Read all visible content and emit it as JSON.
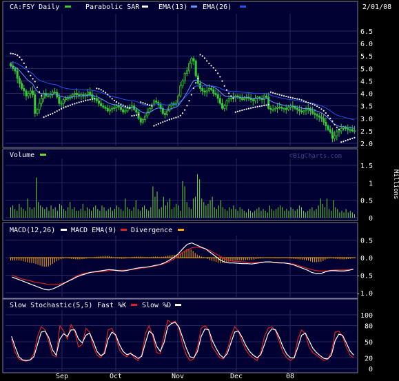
{
  "colors": {
    "background": "#000000",
    "panel_bg": "#000033",
    "panel_border": "#8080a0",
    "grid": "#2a2a60",
    "text": "#ffffff",
    "candle_up": "#33cc33",
    "candle_down": "#33cc33",
    "sar": "#ffffff",
    "ema13": "#6699ff",
    "ema26": "#2255ee",
    "volume": "#66dd33",
    "macd": "#ffffff",
    "macd_ema": "#dd2222",
    "divergence": "#ffaa00",
    "fastk": "#dd2222",
    "slowd": "#ffffff"
  },
  "header": {
    "symbol": "CA:FSY Daily",
    "date": "2/01/08",
    "watermark": "©BigCharts.com"
  },
  "x_axis": {
    "labels": [
      "Sep",
      "Oct",
      "Nov",
      "Dec",
      "08"
    ]
  },
  "chart_data": [
    {
      "type": "candlestick",
      "legend": [
        "Parabolic SAR",
        "EMA(13)",
        "EMA(26)"
      ],
      "ylim": [
        1.9,
        6.6
      ],
      "yticks": [
        "2.0",
        "2.5",
        "3.0",
        "3.5",
        "4.0",
        "4.5",
        "5.0",
        "5.5",
        "6.0",
        "6.5"
      ],
      "grid": true,
      "close": [
        5.1,
        5.0,
        4.9,
        4.6,
        4.4,
        4.2,
        4.1,
        3.9,
        4.0,
        4.1,
        3.95,
        3.2,
        3.35,
        3.6,
        3.8,
        4.0,
        3.9,
        3.9,
        3.95,
        4.05,
        4.05,
        3.85,
        3.6,
        3.6,
        3.75,
        3.8,
        3.8,
        3.9,
        3.95,
        4.0,
        3.95,
        3.9,
        3.95,
        3.9,
        3.95,
        4.05,
        3.95,
        3.8,
        3.8,
        3.7,
        3.6,
        3.5,
        3.45,
        3.4,
        3.3,
        3.35,
        3.4,
        3.45,
        3.5,
        3.45,
        3.35,
        3.25,
        3.3,
        3.4,
        3.45,
        3.5,
        3.35,
        3.25,
        3.0,
        2.85,
        2.95,
        3.1,
        3.25,
        3.4,
        3.55,
        3.7,
        3.65,
        3.55,
        3.4,
        3.2,
        3.15,
        3.3,
        3.5,
        3.6,
        3.55,
        3.6,
        3.9,
        4.3,
        4.5,
        4.8,
        4.9,
        5.2,
        5.4,
        5.3,
        4.7,
        4.4,
        4.2,
        4.1,
        4.05,
        4.1,
        4.2,
        4.15,
        4.0,
        3.95,
        3.8,
        3.6,
        3.4,
        3.5,
        3.7,
        3.8,
        3.8,
        3.85,
        3.9,
        3.85,
        3.8,
        3.75,
        3.8,
        3.85,
        3.8,
        3.75,
        3.7,
        3.8,
        3.85,
        3.8,
        3.75,
        3.9,
        3.85,
        3.4,
        3.35,
        3.35,
        3.4,
        3.45,
        3.45,
        3.4,
        3.4,
        3.35,
        3.45,
        3.5,
        3.45,
        3.4,
        3.35,
        3.3,
        3.25,
        3.3,
        3.35,
        3.4,
        3.3,
        3.2,
        3.15,
        3.1,
        3.05,
        3.0,
        2.85,
        2.7,
        2.55,
        2.45,
        2.2,
        2.3,
        2.45,
        2.5,
        2.6,
        2.65,
        2.6,
        2.55,
        2.55,
        2.5,
        2.5
      ]
    },
    {
      "type": "bar",
      "title": "Volume",
      "ylabel": "Millions",
      "ylim": [
        0,
        1.5
      ],
      "yticks": [
        "0",
        "0.5",
        "1",
        "1.5"
      ],
      "values": [
        0.3,
        0.35,
        0.25,
        0.2,
        0.4,
        0.3,
        0.25,
        0.2,
        0.55,
        0.3,
        0.25,
        0.3,
        1.15,
        0.45,
        0.35,
        0.3,
        0.25,
        0.3,
        0.2,
        0.35,
        0.25,
        0.3,
        0.2,
        0.4,
        0.35,
        0.25,
        0.2,
        0.3,
        0.45,
        0.25,
        0.3,
        0.2,
        0.2,
        0.25,
        0.4,
        0.2,
        0.3,
        0.25,
        0.2,
        0.3,
        0.35,
        0.25,
        0.2,
        0.35,
        0.3,
        0.2,
        0.25,
        0.3,
        0.2,
        0.25,
        0.35,
        0.3,
        0.25,
        0.2,
        0.55,
        0.3,
        0.25,
        0.2,
        0.3,
        0.5,
        0.25,
        0.2,
        0.3,
        0.35,
        0.25,
        0.2,
        0.3,
        0.9,
        0.6,
        0.75,
        0.25,
        0.3,
        0.6,
        0.35,
        0.45,
        0.55,
        0.25,
        0.3,
        0.4,
        0.35,
        0.2,
        1.05,
        0.9,
        0.45,
        0.3,
        0.25,
        0.55,
        0.6,
        1.25,
        1.1,
        0.55,
        0.45,
        0.35,
        0.4,
        0.5,
        0.6,
        0.3,
        0.25,
        0.35,
        0.5,
        0.3,
        0.25,
        0.2,
        0.3,
        0.25,
        0.35,
        0.25,
        0.2,
        0.3,
        0.25,
        0.2,
        0.15,
        0.25,
        0.2,
        0.15,
        0.2,
        0.25,
        0.3,
        0.2,
        0.25,
        0.2,
        0.15,
        0.35,
        0.25,
        0.2,
        0.25,
        0.3,
        0.35,
        0.3,
        0.2,
        0.25,
        0.2,
        0.3,
        0.25,
        0.2,
        0.25,
        0.35,
        0.3,
        0.2,
        0.15,
        0.2,
        0.25,
        0.3,
        0.2,
        0.25,
        0.35,
        0.55,
        0.4,
        0.3,
        0.55,
        0.25,
        0.2,
        0.5,
        0.3,
        0.25,
        0.15,
        0.2,
        0.15,
        0.25,
        0.15,
        0.2,
        0.15,
        0.1
      ]
    },
    {
      "type": "line",
      "legend": [
        "MACD(12,26)",
        "MACD EMA(9)",
        "Divergence"
      ],
      "ylim": [
        -1.1,
        0.6
      ],
      "yticks": [
        "0.5",
        "0.0",
        "-0.5",
        "-1.0"
      ],
      "macd": [
        -0.55,
        -0.6,
        -0.65,
        -0.7,
        -0.75,
        -0.8,
        -0.85,
        -0.9,
        -0.92,
        -0.88,
        -0.82,
        -0.75,
        -0.68,
        -0.62,
        -0.55,
        -0.5,
        -0.46,
        -0.42,
        -0.4,
        -0.38,
        -0.36,
        -0.34,
        -0.35,
        -0.37,
        -0.38,
        -0.36,
        -0.33,
        -0.3,
        -0.28,
        -0.27,
        -0.25,
        -0.22,
        -0.2,
        -0.15,
        -0.08,
        0.0,
        0.1,
        0.25,
        0.38,
        0.42,
        0.36,
        0.3,
        0.25,
        0.15,
        0.05,
        -0.05,
        -0.12,
        -0.15,
        -0.15,
        -0.16,
        -0.17,
        -0.17,
        -0.18,
        -0.16,
        -0.14,
        -0.12,
        -0.12,
        -0.14,
        -0.15,
        -0.15,
        -0.17,
        -0.2,
        -0.25,
        -0.3,
        -0.35,
        -0.42,
        -0.45,
        -0.45,
        -0.4,
        -0.37,
        -0.37,
        -0.38,
        -0.38,
        -0.36,
        -0.33
      ],
      "signal": [
        -0.5,
        -0.55,
        -0.6,
        -0.63,
        -0.66,
        -0.7,
        -0.72,
        -0.74,
        -0.76,
        -0.77,
        -0.76,
        -0.73,
        -0.68,
        -0.6,
        -0.52,
        -0.47,
        -0.44,
        -0.42,
        -0.41,
        -0.4,
        -0.39,
        -0.37,
        -0.36,
        -0.36,
        -0.36,
        -0.35,
        -0.34,
        -0.32,
        -0.3,
        -0.28,
        -0.26,
        -0.24,
        -0.21,
        -0.17,
        -0.12,
        -0.05,
        0.05,
        0.15,
        0.22,
        0.28,
        0.3,
        0.28,
        0.25,
        0.2,
        0.12,
        0.05,
        -0.03,
        -0.08,
        -0.1,
        -0.11,
        -0.12,
        -0.13,
        -0.14,
        -0.14,
        -0.13,
        -0.12,
        -0.12,
        -0.13,
        -0.14,
        -0.15,
        -0.16,
        -0.18,
        -0.22,
        -0.26,
        -0.3,
        -0.34,
        -0.37,
        -0.38,
        -0.38,
        -0.36,
        -0.35,
        -0.35,
        -0.35,
        -0.34,
        -0.33
      ]
    },
    {
      "type": "line",
      "legend": [
        "Slow Stochastic(5,5)",
        "Fast %K",
        "Slow %D"
      ],
      "ylim": [
        0,
        100
      ],
      "yticks": [
        "100",
        "80",
        "50",
        "20",
        "0"
      ],
      "fastk": [
        55,
        30,
        18,
        15,
        14,
        16,
        28,
        60,
        78,
        72,
        50,
        25,
        22,
        80,
        70,
        55,
        82,
        70,
        40,
        45,
        75,
        68,
        40,
        25,
        20,
        32,
        72,
        75,
        60,
        35,
        26,
        22,
        30,
        20,
        15,
        25,
        65,
        80,
        60,
        30,
        28,
        62,
        90,
        85,
        88,
        75,
        45,
        25,
        15,
        18,
        40,
        75,
        80,
        72,
        40,
        30,
        20,
        18,
        35,
        60,
        78,
        70,
        50,
        35,
        25,
        20,
        15,
        30,
        60,
        75,
        78,
        70,
        50,
        30,
        20,
        15,
        20,
        55,
        72,
        65,
        40,
        30,
        25,
        20,
        15,
        18,
        30,
        68,
        70,
        60,
        40,
        25,
        20
      ],
      "slowd": [
        60,
        40,
        22,
        16,
        15,
        16,
        22,
        45,
        68,
        70,
        58,
        35,
        25,
        55,
        65,
        60,
        72,
        72,
        55,
        48,
        62,
        66,
        50,
        32,
        24,
        28,
        55,
        68,
        63,
        45,
        32,
        26,
        28,
        24,
        19,
        23,
        48,
        70,
        64,
        42,
        32,
        48,
        78,
        84,
        86,
        78,
        58,
        38,
        22,
        20,
        32,
        60,
        74,
        72,
        52,
        38,
        26,
        20,
        28,
        48,
        68,
        70,
        58,
        43,
        32,
        25,
        20,
        26,
        45,
        65,
        74,
        72,
        58,
        40,
        27,
        20,
        20,
        40,
        62,
        66,
        52,
        38,
        30,
        24,
        19,
        18,
        25,
        52,
        64,
        62,
        48,
        33,
        25
      ]
    }
  ]
}
